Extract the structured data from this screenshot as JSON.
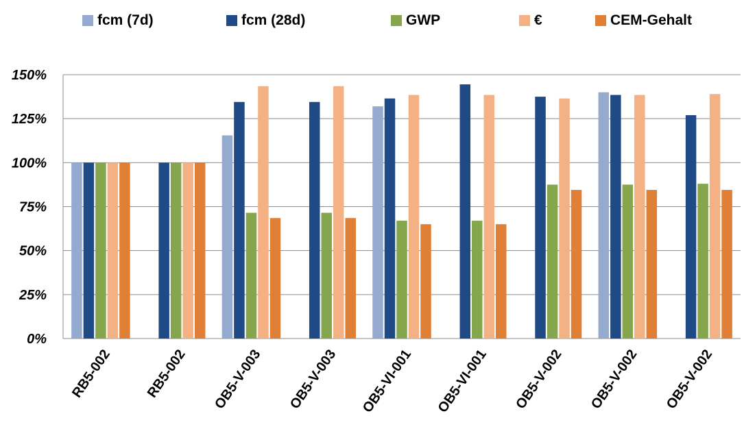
{
  "chart_data": {
    "type": "bar",
    "categories": [
      "RB5-002",
      "RB5-002",
      "OB5-V-003",
      "OB5-V-003",
      "OB5-VI-001",
      "OB5-VI-001",
      "OB5-V-002",
      "OB5-V-002",
      "OB5-V-002"
    ],
    "series": [
      {
        "name": "fcm (7d)",
        "color": "#94AACF",
        "values": [
          100,
          null,
          115.5,
          null,
          132,
          null,
          null,
          140,
          null
        ]
      },
      {
        "name": "fcm (28d)",
        "color": "#1F4A86",
        "values": [
          100,
          100,
          134.5,
          134.5,
          136.5,
          144.5,
          137.5,
          138.5,
          127
        ]
      },
      {
        "name": "GWP",
        "color": "#86A64D",
        "values": [
          100,
          100,
          71.5,
          71.5,
          67,
          67,
          87.5,
          87.5,
          88
        ]
      },
      {
        "name": "€",
        "color": "#F3B184",
        "values": [
          100,
          100,
          143.5,
          143.5,
          138.5,
          138.5,
          136.5,
          138.5,
          139
        ]
      },
      {
        "name": "CEM-Gehalt",
        "color": "#E07F36",
        "values": [
          100,
          100,
          68.5,
          68.5,
          65,
          65,
          84.5,
          84.5,
          84.5
        ]
      }
    ],
    "yticks": [
      "0%",
      "25%",
      "50%",
      "75%",
      "100%",
      "125%",
      "150%"
    ],
    "ylim": [
      0,
      150
    ],
    "grid": true,
    "legend_position": "top"
  }
}
